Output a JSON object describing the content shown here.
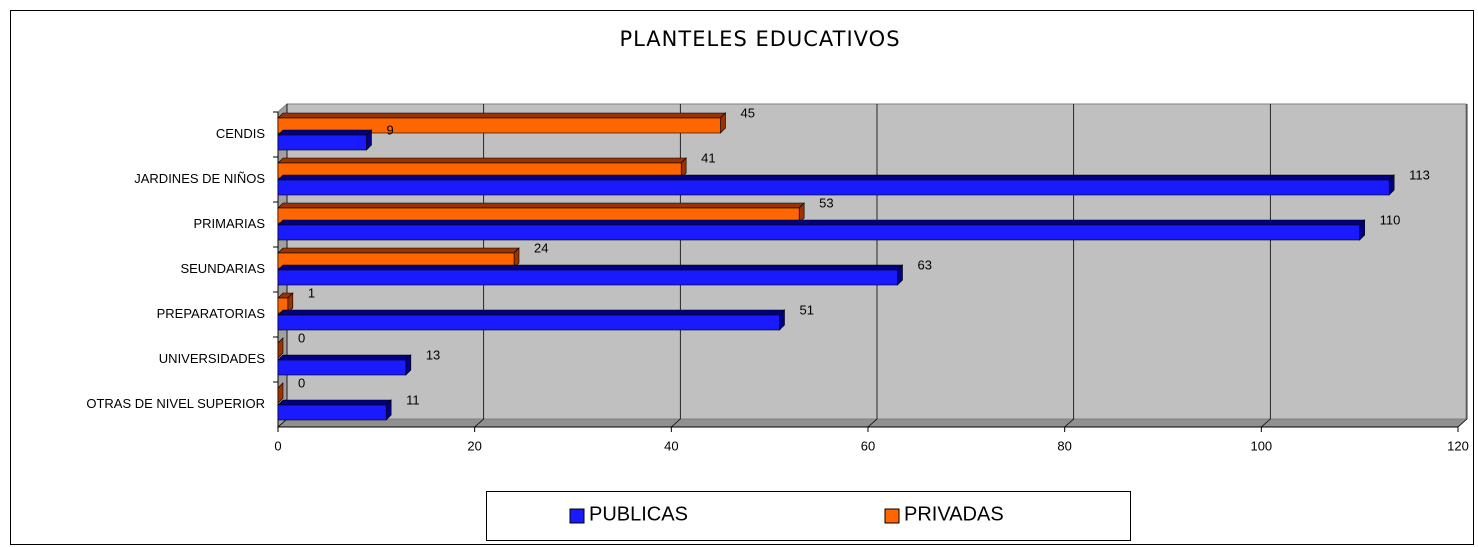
{
  "chart_data": {
    "type": "bar",
    "orientation": "horizontal",
    "title": "PLANTELES EDUCATIVOS",
    "categories": [
      "CENDIS",
      "JARDINES DE NIÑOS",
      "PRIMARIAS",
      "SEUNDARIAS",
      "PREPARATORIAS",
      "UNIVERSIDADES",
      "OTRAS DE NIVEL SUPERIOR"
    ],
    "series": [
      {
        "name": "PUBLICAS",
        "color": "#1a1aff",
        "values": [
          9,
          113,
          110,
          63,
          51,
          13,
          11
        ]
      },
      {
        "name": "PRIVADAS",
        "color": "#ff6600",
        "values": [
          45,
          41,
          53,
          24,
          1,
          0,
          0
        ]
      }
    ],
    "xlim": [
      0,
      120
    ],
    "xticks": [
      0,
      20,
      40,
      60,
      80,
      100,
      120
    ],
    "grid": true
  }
}
